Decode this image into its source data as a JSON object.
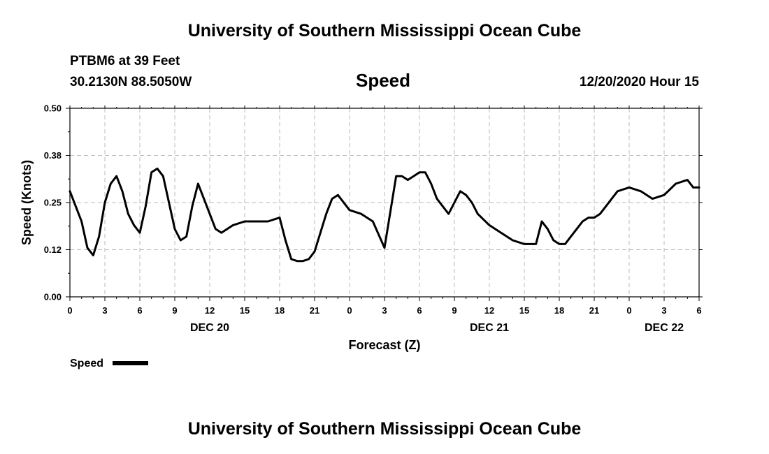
{
  "header": {
    "title_top": "University of Southern Mississippi Ocean Cube",
    "station": "PTBM6 at 39 Feet",
    "coords": "30.2130N 88.5050W",
    "datetime": "12/20/2020 Hour 15",
    "title_bottom": "University of Southern Mississippi Ocean Cube"
  },
  "colors": {
    "line": "#000000",
    "grid": "#bbbbbb"
  },
  "chart_data": {
    "type": "line",
    "title": "Speed",
    "xlabel": "Forecast (Z)",
    "ylabel": "Speed (Knots)",
    "ylim": [
      0.0,
      0.5
    ],
    "xlim": [
      0,
      54
    ],
    "grid": true,
    "y_ticks": [
      "0.00",
      "0.12",
      "0.25",
      "0.38",
      "0.50"
    ],
    "x_ticks": [
      "0",
      "3",
      "6",
      "9",
      "12",
      "15",
      "18",
      "21",
      "0",
      "3",
      "6",
      "9",
      "12",
      "15",
      "18",
      "21",
      "0",
      "3",
      "6"
    ],
    "date_labels": [
      {
        "label": "DEC 20",
        "hour": 12
      },
      {
        "label": "DEC 21",
        "hour": 36
      },
      {
        "label": "DEC 22",
        "hour": 51
      }
    ],
    "legend": "Speed",
    "legend_position": "bottom-left",
    "series": [
      {
        "name": "Speed",
        "x": [
          0,
          0.5,
          1,
          1.5,
          2,
          2.5,
          3,
          3.5,
          4,
          4.5,
          5,
          5.5,
          6,
          6.5,
          7,
          7.5,
          8,
          8.5,
          9,
          9.5,
          10,
          10.5,
          11,
          11.5,
          12,
          12.5,
          13,
          14,
          15,
          16,
          17,
          18,
          18.5,
          19,
          19.5,
          20,
          20.5,
          21,
          21.5,
          22,
          22.5,
          23,
          24,
          25,
          26,
          27,
          28,
          28.5,
          29,
          29.5,
          30,
          30.5,
          31,
          31.5,
          32,
          32.5,
          33,
          33.5,
          34,
          34.5,
          35,
          36,
          37,
          38,
          39,
          40,
          40.5,
          41,
          41.5,
          42,
          42.5,
          43,
          43.5,
          44,
          44.5,
          45,
          45.5,
          46,
          46.5,
          47,
          48,
          49,
          50,
          51,
          52,
          53,
          53.5,
          54
        ],
        "values": [
          0.28,
          0.24,
          0.2,
          0.13,
          0.11,
          0.16,
          0.25,
          0.3,
          0.32,
          0.28,
          0.22,
          0.19,
          0.17,
          0.24,
          0.33,
          0.34,
          0.32,
          0.25,
          0.18,
          0.15,
          0.16,
          0.24,
          0.3,
          0.26,
          0.22,
          0.18,
          0.17,
          0.19,
          0.2,
          0.2,
          0.2,
          0.21,
          0.15,
          0.1,
          0.095,
          0.095,
          0.1,
          0.12,
          0.17,
          0.22,
          0.26,
          0.27,
          0.23,
          0.22,
          0.2,
          0.13,
          0.32,
          0.32,
          0.31,
          0.32,
          0.33,
          0.33,
          0.3,
          0.26,
          0.24,
          0.22,
          0.25,
          0.28,
          0.27,
          0.25,
          0.22,
          0.19,
          0.17,
          0.15,
          0.14,
          0.14,
          0.2,
          0.18,
          0.15,
          0.14,
          0.14,
          0.16,
          0.18,
          0.2,
          0.21,
          0.21,
          0.22,
          0.24,
          0.26,
          0.28,
          0.29,
          0.28,
          0.26,
          0.27,
          0.3,
          0.31,
          0.29,
          0.29
        ]
      }
    ]
  }
}
